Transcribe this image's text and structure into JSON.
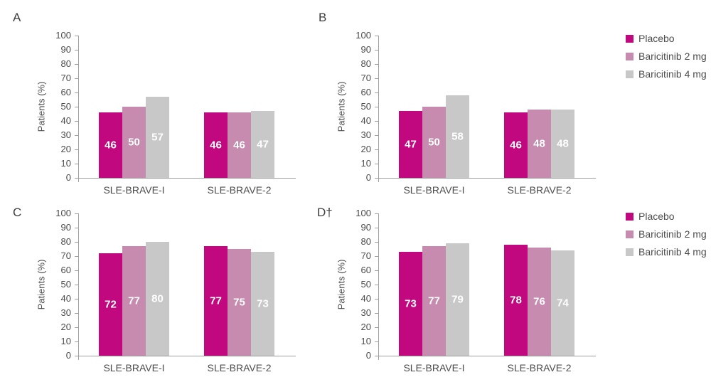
{
  "figure": {
    "panel_labels": [
      "A",
      "B",
      "C",
      "D†"
    ]
  },
  "legend": {
    "items": [
      {
        "label": "Placebo",
        "color": "#C2087F"
      },
      {
        "label": "Baricitinib 2 mg",
        "color": "#C68BAE"
      },
      {
        "label": "Baricitinib 4 mg",
        "color": "#C9C8C9"
      }
    ]
  },
  "colors": {
    "placebo": "#C2087F",
    "baricitinib_2mg": "#C68BAE",
    "baricitinib_4mg": "#C9C8C9",
    "axis": "#9e9e9e",
    "text": "#4c4c4c",
    "bar_value_text": "#ffffff"
  },
  "chart_data": [
    {
      "panel": "A",
      "type": "bar",
      "categories": [
        "SLE-BRAVE-I",
        "SLE-BRAVE-2"
      ],
      "series": [
        {
          "name": "Placebo",
          "color": "#C2087F",
          "values": [
            46,
            46
          ]
        },
        {
          "name": "Baricitinib 2 mg",
          "color": "#C68BAE",
          "values": [
            50,
            46
          ]
        },
        {
          "name": "Baricitinib 4 mg",
          "color": "#C9C8C9",
          "values": [
            57,
            47
          ]
        }
      ],
      "ylabel": "Patients (%)",
      "ylim": [
        0,
        100
      ],
      "ytick_step": 10,
      "grid": false,
      "legend_position": "right-of-panel-B"
    },
    {
      "panel": "B",
      "type": "bar",
      "categories": [
        "SLE-BRAVE-I",
        "SLE-BRAVE-2"
      ],
      "series": [
        {
          "name": "Placebo",
          "color": "#C2087F",
          "values": [
            47,
            46
          ]
        },
        {
          "name": "Baricitinib 2 mg",
          "color": "#C68BAE",
          "values": [
            50,
            48
          ]
        },
        {
          "name": "Baricitinib 4 mg",
          "color": "#C9C8C9",
          "values": [
            58,
            48
          ]
        }
      ],
      "ylabel": "Patients (%)",
      "ylim": [
        0,
        100
      ],
      "ytick_step": 10,
      "grid": false
    },
    {
      "panel": "C",
      "type": "bar",
      "categories": [
        "SLE-BRAVE-I",
        "SLE-BRAVE-2"
      ],
      "series": [
        {
          "name": "Placebo",
          "color": "#C2087F",
          "values": [
            72,
            77
          ]
        },
        {
          "name": "Baricitinib 2 mg",
          "color": "#C68BAE",
          "values": [
            77,
            75
          ]
        },
        {
          "name": "Baricitinib 4 mg",
          "color": "#C9C8C9",
          "values": [
            80,
            73
          ]
        }
      ],
      "ylabel": "Patients (%)",
      "ylim": [
        0,
        100
      ],
      "ytick_step": 10,
      "grid": false
    },
    {
      "panel": "D†",
      "type": "bar",
      "categories": [
        "SLE-BRAVE-I",
        "SLE-BRAVE-2"
      ],
      "series": [
        {
          "name": "Placebo",
          "color": "#C2087F",
          "values": [
            73,
            78
          ]
        },
        {
          "name": "Baricitinib 2 mg",
          "color": "#C68BAE",
          "values": [
            77,
            76
          ]
        },
        {
          "name": "Baricitinib 4 mg",
          "color": "#C9C8C9",
          "values": [
            79,
            74
          ]
        }
      ],
      "ylabel": "Patients (%)",
      "ylim": [
        0,
        100
      ],
      "ytick_step": 10,
      "grid": false
    }
  ]
}
